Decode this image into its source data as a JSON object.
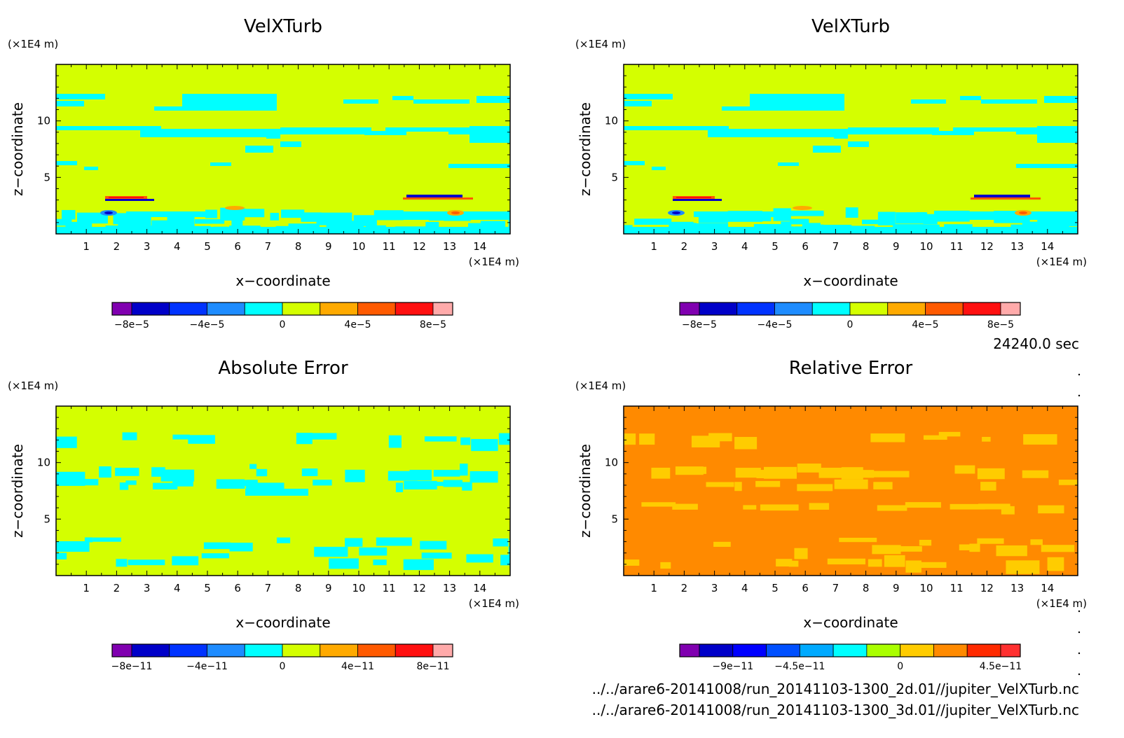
{
  "colors": {
    "page_bg": "#ffffff",
    "velx_bg": "#d4ff00",
    "cyan": "#00ffff",
    "abs_bg": "#d4ff00",
    "rel_bg": "#ff8a00",
    "rel_patch": "#ffcc00"
  },
  "time_label": "24240.0 sec",
  "file_paths": [
    "../../arare6-20141008/run_20141103-1300_2d.01//jupiter_VelXTurb.nc",
    "../../arare6-20141008/run_20141103-1300_3d.01//jupiter_VelXTurb.nc"
  ],
  "chart_data": [
    {
      "id": "velx_2d",
      "type": "heatmap",
      "title": "VelXTurb",
      "xlabel": "x−coordinate",
      "ylabel": "z−coordinate",
      "x_unit": "(×1E4 m)",
      "y_unit": "(×1E4 m)",
      "xlim": [
        0,
        15
      ],
      "ylim": [
        0,
        15
      ],
      "xticks": [
        "1",
        "2",
        "3",
        "4",
        "5",
        "6",
        "7",
        "8",
        "9",
        "10",
        "11",
        "12",
        "13",
        "14"
      ],
      "yticks": [
        "5",
        "10"
      ],
      "colorbar_colors": [
        "#8000b0",
        "#0000c8",
        "#0033ff",
        "#1e8cff",
        "#00ffff",
        "#d4ff00",
        "#ffaa00",
        "#ff5a00",
        "#ff1010",
        "#ffaaaa"
      ],
      "colorbar_labels": [
        "−8e−5",
        "−4e−5",
        "0",
        "4e−5",
        "8e−5"
      ]
    },
    {
      "id": "velx_3d",
      "type": "heatmap",
      "title": "VelXTurb",
      "xlabel": "x−coordinate",
      "ylabel": "z−coordinate",
      "x_unit": "(×1E4 m)",
      "y_unit": "(×1E4 m)",
      "xlim": [
        0,
        15
      ],
      "ylim": [
        0,
        15
      ],
      "xticks": [
        "1",
        "2",
        "3",
        "4",
        "5",
        "6",
        "7",
        "8",
        "9",
        "10",
        "11",
        "12",
        "13",
        "14"
      ],
      "yticks": [
        "5",
        "10"
      ],
      "colorbar_colors": [
        "#8000b0",
        "#0000c8",
        "#0033ff",
        "#1e8cff",
        "#00ffff",
        "#d4ff00",
        "#ffaa00",
        "#ff5a00",
        "#ff1010",
        "#ffaaaa"
      ],
      "colorbar_labels": [
        "−8e−5",
        "−4e−5",
        "0",
        "4e−5",
        "8e−5"
      ]
    },
    {
      "id": "abs_err",
      "type": "heatmap",
      "title": "Absolute Error",
      "xlabel": "x−coordinate",
      "ylabel": "z−coordinate",
      "x_unit": "(×1E4 m)",
      "y_unit": "(×1E4 m)",
      "xlim": [
        0,
        15
      ],
      "ylim": [
        0,
        15
      ],
      "xticks": [
        "1",
        "2",
        "3",
        "4",
        "5",
        "6",
        "7",
        "8",
        "9",
        "10",
        "11",
        "12",
        "13",
        "14"
      ],
      "yticks": [
        "5",
        "10"
      ],
      "colorbar_colors": [
        "#8000b0",
        "#0000c8",
        "#0033ff",
        "#1e8cff",
        "#00ffff",
        "#d4ff00",
        "#ffaa00",
        "#ff5a00",
        "#ff1010",
        "#ffaaaa"
      ],
      "colorbar_labels": [
        "−8e−11",
        "−4e−11",
        "0",
        "4e−11",
        "8e−11"
      ]
    },
    {
      "id": "rel_err",
      "type": "heatmap",
      "title": "Relative Error",
      "xlabel": "x−coordinate",
      "ylabel": "z−coordinate",
      "x_unit": "(×1E4 m)",
      "y_unit": "(×1E4 m)",
      "xlim": [
        0,
        15
      ],
      "ylim": [
        0,
        15
      ],
      "xticks": [
        "1",
        "2",
        "3",
        "4",
        "5",
        "6",
        "7",
        "8",
        "9",
        "10",
        "11",
        "12",
        "13",
        "14"
      ],
      "yticks": [
        "5",
        "10"
      ],
      "colorbar_colors": [
        "#8000b0",
        "#0000c8",
        "#0000ff",
        "#0050ff",
        "#00aaff",
        "#00ffff",
        "#aaff00",
        "#ffcc00",
        "#ff8a00",
        "#ff2a00",
        "#ff3030"
      ],
      "colorbar_labels": [
        "−9e−11",
        "−4.5e−11",
        "0",
        "4.5e−11"
      ]
    }
  ]
}
